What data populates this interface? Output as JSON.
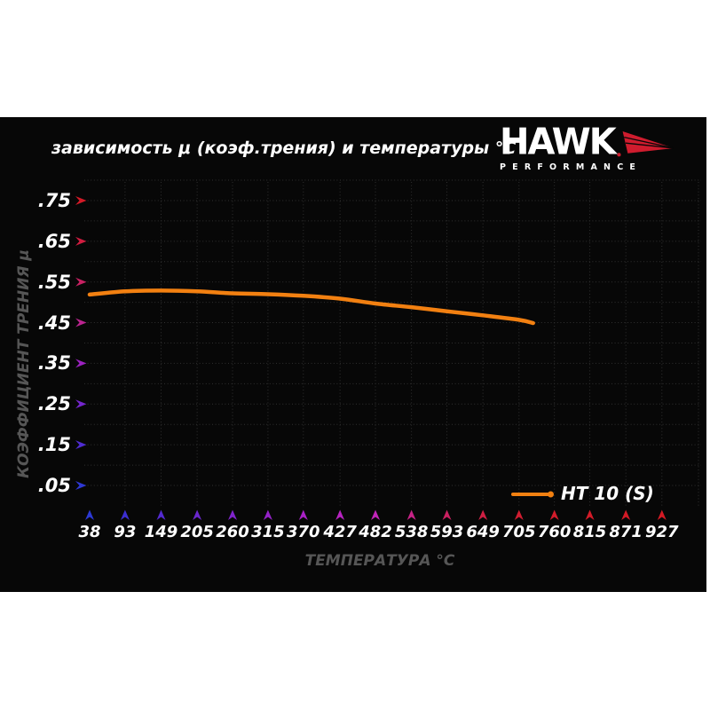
{
  "page": {
    "background": "#ffffff",
    "panel_background": "#070707"
  },
  "logo": {
    "brand": "HAWK",
    "subtitle": "PERFORMANCE",
    "red": "#cf1c2e"
  },
  "chart_data": {
    "type": "line",
    "title": "зависимость μ (коэф.трения) и температуры °C",
    "xlabel": "ТЕМПЕРАТУРА °C",
    "ylabel": "КОЭФФИЦИЕНТ ТРЕНИЯ μ",
    "xlim": [
      38,
      985
    ],
    "ylim": [
      0.05,
      0.8
    ],
    "grid": {
      "show": true,
      "color": "#303030",
      "x_step_c": 55,
      "y_step_mu": 0.05
    },
    "x_ticks": [
      {
        "label": "38",
        "value": 38,
        "color": "#2c39d4"
      },
      {
        "label": "93",
        "value": 93,
        "color": "#3c2ed2"
      },
      {
        "label": "149",
        "value": 149,
        "color": "#532ad0"
      },
      {
        "label": "205",
        "value": 205,
        "color": "#6a27ce"
      },
      {
        "label": "260",
        "value": 260,
        "color": "#8024cc"
      },
      {
        "label": "315",
        "value": 315,
        "color": "#9522c9"
      },
      {
        "label": "370",
        "value": 370,
        "color": "#a921c6"
      },
      {
        "label": "427",
        "value": 427,
        "color": "#b723c1"
      },
      {
        "label": "482",
        "value": 482,
        "color": "#c125b9"
      },
      {
        "label": "538",
        "value": 538,
        "color": "#c62387"
      },
      {
        "label": "593",
        "value": 593,
        "color": "#cb2161"
      },
      {
        "label": "649",
        "value": 649,
        "color": "#cf1f43"
      },
      {
        "label": "705",
        "value": 705,
        "color": "#d11d31"
      },
      {
        "label": "760",
        "value": 760,
        "color": "#d21c2b"
      },
      {
        "label": "815",
        "value": 815,
        "color": "#d31b28"
      },
      {
        "label": "871",
        "value": 871,
        "color": "#d41a26"
      },
      {
        "label": "927",
        "value": 927,
        "color": "#d41a24"
      }
    ],
    "y_ticks": [
      {
        "label": ".75",
        "value": 0.75,
        "color": "#d41a27"
      },
      {
        "label": ".65",
        "value": 0.65,
        "color": "#d11d40"
      },
      {
        "label": ".55",
        "value": 0.55,
        "color": "#c92163"
      },
      {
        "label": ".45",
        "value": 0.45,
        "color": "#bb2490"
      },
      {
        "label": ".35",
        "value": 0.35,
        "color": "#9c22c0"
      },
      {
        "label": ".25",
        "value": 0.25,
        "color": "#7526ce"
      },
      {
        "label": ".15",
        "value": 0.15,
        "color": "#4f2cd2"
      },
      {
        "label": ".05",
        "value": 0.05,
        "color": "#2e38d4"
      }
    ],
    "series": [
      {
        "name": "HT 10 (S)",
        "color": "#f28011",
        "x": [
          38,
          93,
          149,
          205,
          260,
          315,
          370,
          427,
          482,
          538,
          593,
          649,
          705,
          727
        ],
        "y": [
          0.519,
          0.527,
          0.529,
          0.527,
          0.522,
          0.52,
          0.516,
          0.509,
          0.497,
          0.488,
          0.478,
          0.468,
          0.457,
          0.449
        ]
      }
    ],
    "legend": {
      "label": "HT 10 (S)",
      "position": "bottom-right"
    }
  }
}
